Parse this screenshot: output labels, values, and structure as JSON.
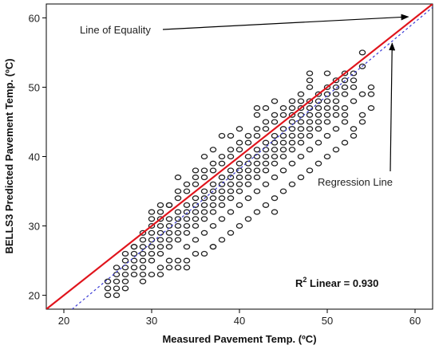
{
  "chart_data": {
    "type": "scatter",
    "xlabel": "Measured Pavement Temp. (ºC)",
    "ylabel": "BELLS3 Predicted Pavement Temp. (ºC)",
    "xlim": [
      18,
      62
    ],
    "ylim": [
      18,
      62
    ],
    "xticks": [
      20,
      30,
      40,
      50,
      60
    ],
    "yticks": [
      20,
      30,
      40,
      50,
      60
    ],
    "grid": false,
    "points": [
      [
        25,
        20
      ],
      [
        26,
        20
      ],
      [
        25,
        21
      ],
      [
        26,
        21
      ],
      [
        25,
        22
      ],
      [
        26,
        22
      ],
      [
        26,
        23
      ],
      [
        27,
        23
      ],
      [
        27,
        24
      ],
      [
        28,
        24
      ],
      [
        28,
        25
      ],
      [
        29,
        25
      ],
      [
        27,
        26
      ],
      [
        28,
        26
      ],
      [
        29,
        26
      ],
      [
        30,
        26
      ],
      [
        28,
        27
      ],
      [
        29,
        27
      ],
      [
        30,
        27
      ],
      [
        31,
        27
      ],
      [
        29,
        28
      ],
      [
        30,
        28
      ],
      [
        31,
        28
      ],
      [
        32,
        28
      ],
      [
        30,
        29
      ],
      [
        31,
        29
      ],
      [
        32,
        29
      ],
      [
        33,
        29
      ],
      [
        31,
        30
      ],
      [
        32,
        30
      ],
      [
        33,
        30
      ],
      [
        34,
        30
      ],
      [
        32,
        31
      ],
      [
        33,
        31
      ],
      [
        34,
        31
      ],
      [
        35,
        31
      ],
      [
        33,
        32
      ],
      [
        34,
        32
      ],
      [
        35,
        32
      ],
      [
        36,
        32
      ],
      [
        34,
        33
      ],
      [
        35,
        33
      ],
      [
        36,
        33
      ],
      [
        37,
        33
      ],
      [
        35,
        34
      ],
      [
        36,
        34
      ],
      [
        37,
        34
      ],
      [
        38,
        34
      ],
      [
        36,
        35
      ],
      [
        37,
        35
      ],
      [
        38,
        35
      ],
      [
        39,
        35
      ],
      [
        37,
        36
      ],
      [
        38,
        36
      ],
      [
        39,
        36
      ],
      [
        40,
        36
      ],
      [
        38,
        37
      ],
      [
        39,
        37
      ],
      [
        40,
        37
      ],
      [
        41,
        37
      ],
      [
        39,
        38
      ],
      [
        40,
        38
      ],
      [
        41,
        38
      ],
      [
        42,
        38
      ],
      [
        40,
        39
      ],
      [
        41,
        39
      ],
      [
        42,
        39
      ],
      [
        43,
        39
      ],
      [
        41,
        40
      ],
      [
        42,
        40
      ],
      [
        43,
        40
      ],
      [
        44,
        40
      ],
      [
        42,
        41
      ],
      [
        43,
        41
      ],
      [
        44,
        41
      ],
      [
        45,
        41
      ],
      [
        43,
        42
      ],
      [
        44,
        42
      ],
      [
        45,
        42
      ],
      [
        46,
        42
      ],
      [
        44,
        43
      ],
      [
        45,
        43
      ],
      [
        46,
        43
      ],
      [
        47,
        43
      ],
      [
        45,
        44
      ],
      [
        46,
        44
      ],
      [
        47,
        44
      ],
      [
        48,
        44
      ],
      [
        46,
        45
      ],
      [
        47,
        45
      ],
      [
        48,
        45
      ],
      [
        49,
        45
      ],
      [
        47,
        46
      ],
      [
        48,
        46
      ],
      [
        49,
        46
      ],
      [
        50,
        46
      ],
      [
        48,
        47
      ],
      [
        49,
        47
      ],
      [
        50,
        47
      ],
      [
        51,
        47
      ],
      [
        48,
        48
      ],
      [
        49,
        48
      ],
      [
        50,
        48
      ],
      [
        51,
        48
      ],
      [
        49,
        49
      ],
      [
        50,
        49
      ],
      [
        51,
        49
      ],
      [
        52,
        49
      ],
      [
        50,
        50
      ],
      [
        51,
        50
      ],
      [
        52,
        50
      ],
      [
        53,
        50
      ],
      [
        51,
        51
      ],
      [
        52,
        51
      ],
      [
        53,
        51
      ],
      [
        52,
        52
      ],
      [
        53,
        52
      ],
      [
        54,
        53
      ],
      [
        54,
        55
      ],
      [
        27,
        22
      ],
      [
        28,
        23
      ],
      [
        29,
        24
      ],
      [
        30,
        25
      ],
      [
        31,
        26
      ],
      [
        32,
        27
      ],
      [
        33,
        28
      ],
      [
        34,
        29
      ],
      [
        35,
        30
      ],
      [
        36,
        31
      ],
      [
        37,
        32
      ],
      [
        38,
        33
      ],
      [
        39,
        34
      ],
      [
        40,
        35
      ],
      [
        41,
        36
      ],
      [
        42,
        37
      ],
      [
        43,
        38
      ],
      [
        44,
        39
      ],
      [
        45,
        40
      ],
      [
        46,
        41
      ],
      [
        47,
        42
      ],
      [
        48,
        43
      ],
      [
        49,
        44
      ],
      [
        50,
        45
      ],
      [
        51,
        46
      ],
      [
        52,
        47
      ],
      [
        53,
        48
      ],
      [
        54,
        49
      ],
      [
        55,
        50
      ],
      [
        55,
        49
      ],
      [
        27,
        25
      ],
      [
        28,
        27
      ],
      [
        29,
        29
      ],
      [
        30,
        30
      ],
      [
        31,
        31
      ],
      [
        32,
        33
      ],
      [
        33,
        35
      ],
      [
        34,
        36
      ],
      [
        35,
        37
      ],
      [
        36,
        38
      ],
      [
        37,
        39
      ],
      [
        38,
        40
      ],
      [
        39,
        41
      ],
      [
        40,
        42
      ],
      [
        41,
        43
      ],
      [
        42,
        44
      ],
      [
        43,
        45
      ],
      [
        44,
        46
      ],
      [
        45,
        47
      ],
      [
        46,
        48
      ],
      [
        47,
        49
      ],
      [
        48,
        50
      ],
      [
        48,
        51
      ],
      [
        48,
        52
      ],
      [
        50,
        52
      ],
      [
        38,
        43
      ],
      [
        40,
        44
      ],
      [
        42,
        47
      ],
      [
        44,
        48
      ],
      [
        46,
        46
      ],
      [
        47,
        47
      ],
      [
        29,
        23
      ],
      [
        30,
        23
      ],
      [
        31,
        24
      ],
      [
        32,
        24
      ],
      [
        33,
        25
      ],
      [
        34,
        25
      ],
      [
        35,
        26
      ],
      [
        36,
        26
      ],
      [
        37,
        27
      ],
      [
        38,
        28
      ],
      [
        39,
        29
      ],
      [
        40,
        30
      ],
      [
        41,
        31
      ],
      [
        42,
        32
      ],
      [
        43,
        33
      ],
      [
        44,
        34
      ],
      [
        45,
        35
      ],
      [
        46,
        36
      ],
      [
        47,
        37
      ],
      [
        48,
        38
      ],
      [
        49,
        39
      ],
      [
        50,
        40
      ],
      [
        51,
        41
      ],
      [
        52,
        42
      ],
      [
        53,
        43
      ],
      [
        53,
        44
      ],
      [
        54,
        45
      ],
      [
        33,
        24
      ],
      [
        34,
        24
      ],
      [
        44,
        32
      ],
      [
        37,
        27
      ],
      [
        30,
        31
      ],
      [
        31,
        32
      ],
      [
        32,
        33
      ],
      [
        33,
        34
      ],
      [
        34,
        35
      ],
      [
        35,
        36
      ],
      [
        36,
        37
      ],
      [
        37,
        38
      ],
      [
        38,
        39
      ],
      [
        39,
        40
      ],
      [
        40,
        41
      ],
      [
        41,
        42
      ],
      [
        42,
        43
      ],
      [
        43,
        44
      ],
      [
        44,
        45
      ],
      [
        45,
        46
      ],
      [
        46,
        47
      ],
      [
        47,
        48
      ],
      [
        31,
        33
      ],
      [
        30,
        32
      ],
      [
        33,
        37
      ],
      [
        35,
        38
      ],
      [
        36,
        40
      ],
      [
        37,
        41
      ],
      [
        39,
        43
      ],
      [
        42,
        46
      ],
      [
        43,
        47
      ],
      [
        26,
        24
      ],
      [
        27,
        21
      ],
      [
        29,
        22
      ],
      [
        31,
        23
      ],
      [
        32,
        25
      ],
      [
        34,
        27
      ],
      [
        35,
        28
      ],
      [
        36,
        29
      ],
      [
        37,
        30
      ],
      [
        38,
        31
      ],
      [
        39,
        32
      ],
      [
        40,
        33
      ],
      [
        41,
        34
      ],
      [
        42,
        35
      ],
      [
        43,
        36
      ],
      [
        44,
        37
      ],
      [
        45,
        38
      ],
      [
        46,
        39
      ],
      [
        47,
        40
      ],
      [
        48,
        41
      ],
      [
        49,
        42
      ],
      [
        50,
        43
      ],
      [
        51,
        44
      ],
      [
        52,
        45
      ],
      [
        52,
        46
      ],
      [
        54,
        46
      ],
      [
        55,
        47
      ]
    ],
    "series": [
      {
        "name": "Line of Equality",
        "type": "line",
        "color": "#e0141c",
        "slope": 1,
        "intercept": 0
      },
      {
        "name": "Regression Line",
        "type": "dashed-line",
        "color": "#3c3cd6",
        "slope": 1.06,
        "intercept": -4.2
      }
    ],
    "annotations": [
      {
        "text": "Line of Equality",
        "at": [
          28,
          59
        ],
        "points_to": [
          59.5,
          60.5
        ]
      },
      {
        "text": "Regression Line",
        "at": [
          50,
          37
        ],
        "points_to": [
          57.3,
          56.8
        ]
      }
    ],
    "r_squared": {
      "prefix": "R",
      "sup": "2",
      "text": " Linear = 0.930"
    },
    "colors": {
      "equality": "#e0141c",
      "regression": "#3c3cd6",
      "marker": "#222222",
      "frame": "#000000"
    }
  }
}
